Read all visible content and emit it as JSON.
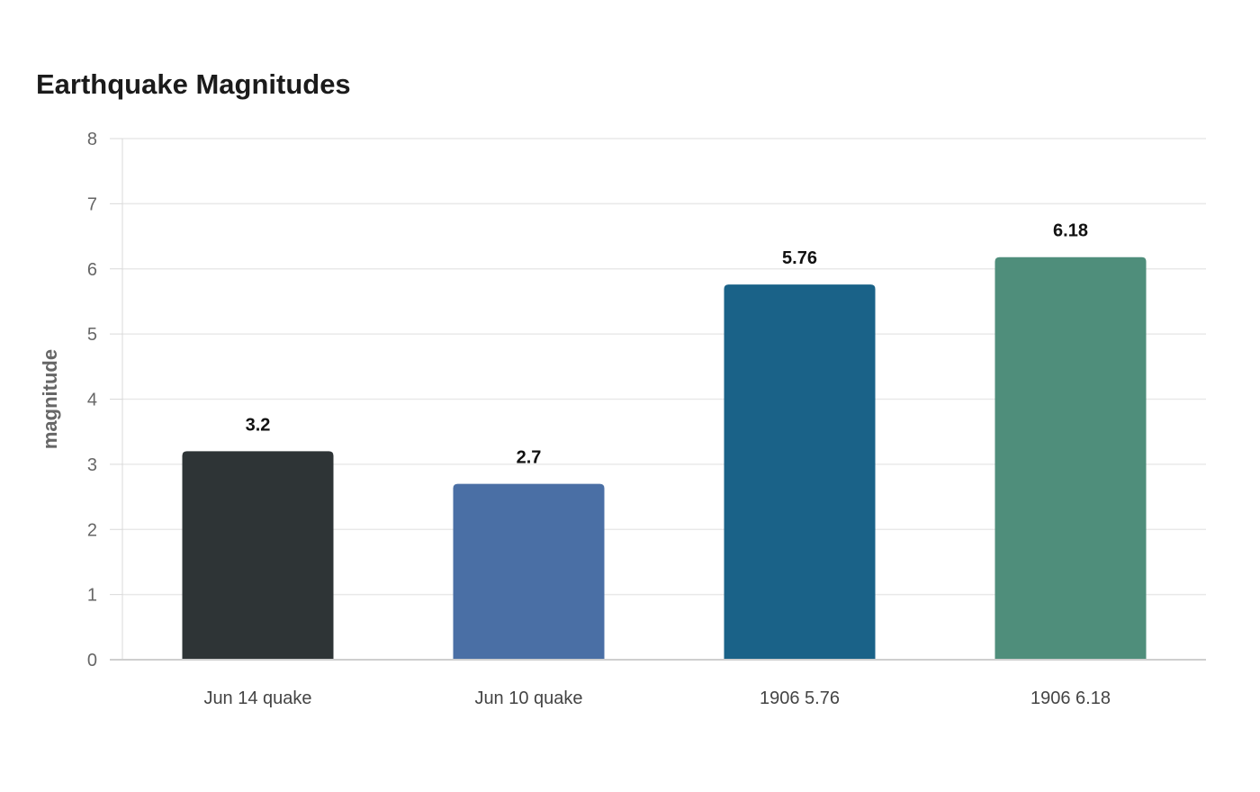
{
  "chart_data": {
    "type": "bar",
    "title": "Earthquake Magnitudes",
    "ylabel": "magnitude",
    "xlabel": "",
    "categories": [
      "Jun 14 quake",
      "Jun 10 quake",
      "1906 5.76",
      "1906 6.18"
    ],
    "values": [
      3.2,
      2.7,
      5.76,
      6.18
    ],
    "value_labels": [
      "3.2",
      "2.7",
      "5.76",
      "6.18"
    ],
    "colors": [
      "#2e3436",
      "#4a6fa5",
      "#1a6288",
      "#4f8e7b"
    ],
    "ylim": [
      0,
      8
    ],
    "yticks": [
      0,
      1,
      2,
      3,
      4,
      5,
      6,
      7,
      8
    ],
    "grid": true,
    "legend": "none"
  }
}
